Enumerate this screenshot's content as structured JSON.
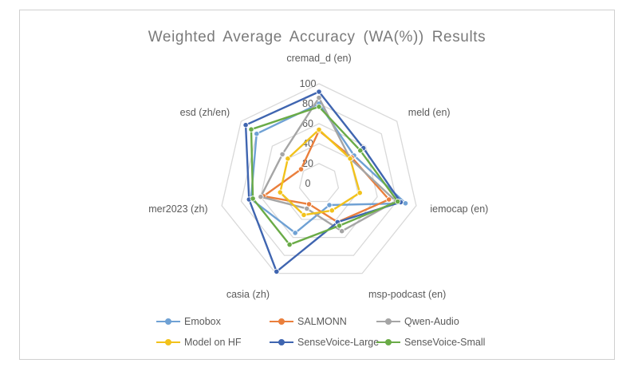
{
  "chart_data": {
    "type": "radar",
    "title": "Weighted Average Accuracy (WA(%)) Results",
    "axes": [
      "cremad_d (en)",
      "meld (en)",
      "iemocap (en)",
      "msp-podcast (en)",
      "casia (zh)",
      "mer2023 (zh)",
      "esd  (zh/en)"
    ],
    "ticks": [
      "0",
      "20",
      "40",
      "60",
      "80",
      "100"
    ],
    "rlim": [
      0,
      100
    ],
    "grid": true,
    "legend_position": "bottom",
    "series": [
      {
        "name": "Emobox",
        "color": "#6fa1d4",
        "values": [
          80,
          45,
          89,
          24,
          55,
          70,
          80
        ]
      },
      {
        "name": "SALMONN",
        "color": "#ea7f3c",
        "values": [
          53,
          42,
          72,
          43,
          23,
          57,
          23
        ]
      },
      {
        "name": "Qwen-Audio",
        "color": "#a5a5a5",
        "values": [
          86,
          40,
          79,
          53,
          28,
          60,
          47
        ]
      },
      {
        "name": "Model on HF",
        "color": "#f2c21b",
        "values": [
          54,
          40,
          42,
          30,
          35,
          40,
          40
        ]
      },
      {
        "name": "SenseVoice-Large",
        "color": "#3f65b0",
        "values": [
          92,
          57,
          84,
          43,
          98,
          72,
          94
        ]
      },
      {
        "name": "SenseVoice-Small",
        "color": "#6aab47",
        "values": [
          77,
          53,
          81,
          47,
          68,
          68,
          87
        ]
      }
    ]
  }
}
